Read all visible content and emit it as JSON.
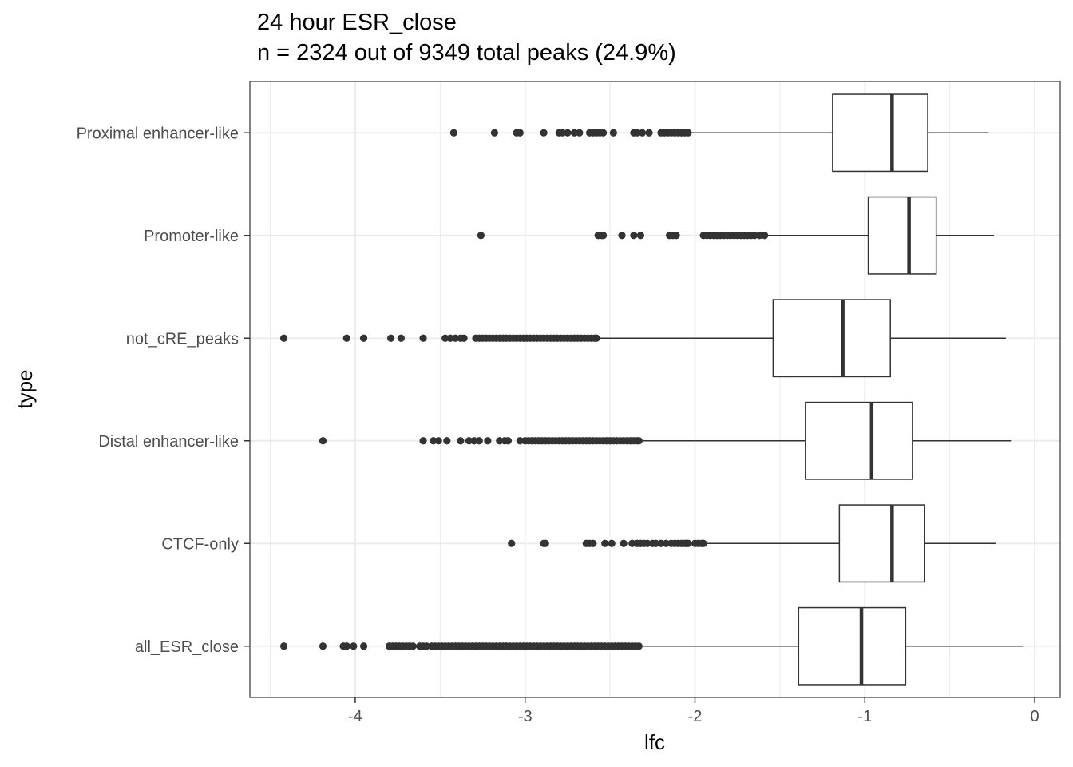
{
  "chart_data": {
    "type": "boxplot",
    "orientation": "horizontal",
    "title": "24 hour ESR_close",
    "subtitle": "n = 2324 out of 9349 total peaks (24.9%)",
    "xlabel": "lfc",
    "ylabel": "type",
    "xlim": [
      -4.62,
      0.15
    ],
    "xticks": [
      -4,
      -3,
      -2,
      -1,
      0
    ],
    "xtick_labels": [
      "-4",
      "-3",
      "-2",
      "-1",
      "0"
    ],
    "grid": true,
    "legend": "none",
    "colors": {
      "box_stroke": "#333333",
      "outlier": "#333333",
      "grid": "#ebebeb",
      "panel_border": "#333333"
    },
    "categories": [
      "all_ESR_close",
      "CTCF-only",
      "Distal enhancer-like",
      "not_cRE_peaks",
      "Promoter-like",
      "Proximal enhancer-like"
    ],
    "boxes": [
      {
        "category": "all_ESR_close",
        "lower_whisker": -2.31,
        "q1": -1.39,
        "median": -1.02,
        "q3": -0.76,
        "upper_whisker": -0.07,
        "outliers": [
          -4.42,
          -4.19,
          -4.07,
          -4.05,
          -4.01,
          -3.95,
          -3.8,
          -3.78,
          -3.76,
          -3.74,
          -3.72,
          -3.7,
          -3.68,
          -3.66,
          -3.62,
          -3.6,
          -3.58,
          -3.55,
          -3.53,
          -3.51,
          -3.49,
          -3.47,
          -3.45,
          -3.43,
          -3.41,
          -3.39,
          -3.37,
          -3.35,
          -3.33,
          -3.31,
          -3.29,
          -3.27,
          -3.25,
          -3.23,
          -3.21,
          -3.19,
          -3.17,
          -3.15,
          -3.13,
          -3.11,
          -3.09,
          -3.07,
          -3.05,
          -3.03,
          -3.01,
          -2.99,
          -2.97,
          -2.95,
          -2.93,
          -2.91,
          -2.89,
          -2.87,
          -2.85,
          -2.83,
          -2.81,
          -2.79,
          -2.77,
          -2.75,
          -2.73,
          -2.71,
          -2.69,
          -2.67,
          -2.65,
          -2.63,
          -2.61,
          -2.59,
          -2.57,
          -2.55,
          -2.53,
          -2.51,
          -2.49,
          -2.47,
          -2.45,
          -2.43,
          -2.41,
          -2.39,
          -2.37,
          -2.35,
          -2.33
        ]
      },
      {
        "category": "CTCF-only",
        "lower_whisker": -1.93,
        "q1": -1.15,
        "median": -0.84,
        "q3": -0.65,
        "upper_whisker": -0.23,
        "outliers": [
          -3.08,
          -2.89,
          -2.88,
          -2.64,
          -2.62,
          -2.6,
          -2.53,
          -2.49,
          -2.42,
          -2.37,
          -2.34,
          -2.32,
          -2.3,
          -2.28,
          -2.25,
          -2.23,
          -2.2,
          -2.17,
          -2.14,
          -2.12,
          -2.1,
          -2.08,
          -2.06,
          -2.05,
          -2.04,
          -2.0,
          -1.98,
          -1.96,
          -1.95
        ]
      },
      {
        "category": "Distal enhancer-like",
        "lower_whisker": -2.31,
        "q1": -1.35,
        "median": -0.96,
        "q3": -0.72,
        "upper_whisker": -0.14,
        "outliers": [
          -4.19,
          -3.6,
          -3.54,
          -3.51,
          -3.46,
          -3.38,
          -3.33,
          -3.3,
          -3.27,
          -3.22,
          -3.15,
          -3.12,
          -3.1,
          -3.03,
          -3.0,
          -2.98,
          -2.96,
          -2.94,
          -2.92,
          -2.9,
          -2.88,
          -2.86,
          -2.84,
          -2.82,
          -2.8,
          -2.78,
          -2.76,
          -2.74,
          -2.72,
          -2.7,
          -2.68,
          -2.66,
          -2.64,
          -2.62,
          -2.6,
          -2.58,
          -2.56,
          -2.54,
          -2.52,
          -2.5,
          -2.48,
          -2.46,
          -2.44,
          -2.42,
          -2.4,
          -2.38,
          -2.36,
          -2.34,
          -2.33
        ]
      },
      {
        "category": "not_cRE_peaks",
        "lower_whisker": -2.56,
        "q1": -1.54,
        "median": -1.13,
        "q3": -0.85,
        "upper_whisker": -0.17,
        "outliers": [
          -4.42,
          -4.05,
          -3.95,
          -3.79,
          -3.73,
          -3.6,
          -3.47,
          -3.44,
          -3.41,
          -3.38,
          -3.36,
          -3.29,
          -3.27,
          -3.25,
          -3.23,
          -3.21,
          -3.19,
          -3.17,
          -3.15,
          -3.13,
          -3.11,
          -3.09,
          -3.07,
          -3.05,
          -3.03,
          -3.01,
          -2.99,
          -2.97,
          -2.95,
          -2.93,
          -2.91,
          -2.89,
          -2.87,
          -2.85,
          -2.83,
          -2.81,
          -2.79,
          -2.77,
          -2.75,
          -2.73,
          -2.71,
          -2.69,
          -2.67,
          -2.65,
          -2.63,
          -2.61,
          -2.59,
          -2.58
        ]
      },
      {
        "category": "Promoter-like",
        "lower_whisker": -1.57,
        "q1": -0.98,
        "median": -0.74,
        "q3": -0.58,
        "upper_whisker": -0.24,
        "outliers": [
          -3.26,
          -2.57,
          -2.55,
          -2.54,
          -2.43,
          -2.36,
          -2.32,
          -2.15,
          -2.13,
          -2.11,
          -1.95,
          -1.93,
          -1.91,
          -1.89,
          -1.87,
          -1.85,
          -1.83,
          -1.81,
          -1.79,
          -1.77,
          -1.75,
          -1.73,
          -1.71,
          -1.69,
          -1.67,
          -1.65,
          -1.62,
          -1.59
        ]
      },
      {
        "category": "Proximal enhancer-like",
        "lower_whisker": -2.02,
        "q1": -1.19,
        "median": -0.84,
        "q3": -0.63,
        "upper_whisker": -0.27,
        "outliers": [
          -3.42,
          -3.18,
          -3.05,
          -3.03,
          -2.89,
          -2.8,
          -2.78,
          -2.75,
          -2.71,
          -2.68,
          -2.62,
          -2.6,
          -2.58,
          -2.56,
          -2.54,
          -2.48,
          -2.36,
          -2.34,
          -2.31,
          -2.27,
          -2.2,
          -2.18,
          -2.16,
          -2.14,
          -2.12,
          -2.1,
          -2.08,
          -2.06,
          -2.04
        ]
      }
    ]
  }
}
